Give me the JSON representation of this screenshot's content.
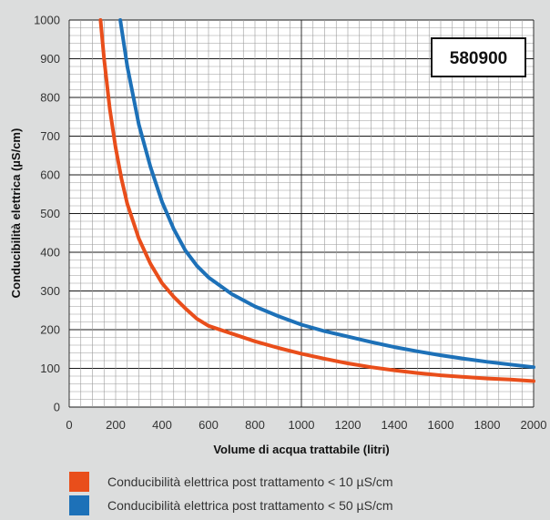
{
  "product_code": "580900",
  "chart_data": {
    "type": "line",
    "xlabel": "Volume di acqua trattabile (litri)",
    "ylabel": "Conducibilità elettrica (µS/cm)",
    "xlim": [
      0,
      2000
    ],
    "ylim": [
      0,
      1000
    ],
    "xticks": [
      "0",
      "200",
      "400",
      "600",
      "800",
      "1000",
      "1200",
      "1400",
      "1600",
      "1800",
      "2000"
    ],
    "yticks": [
      "0",
      "100",
      "200",
      "300",
      "400",
      "500",
      "600",
      "700",
      "800",
      "900",
      "1000"
    ],
    "grid": true,
    "legend_position": "bottom",
    "series": [
      {
        "name": "Conducibilità elettrica post trattamento < 10 µS/cm",
        "color": "#e94e1b",
        "x": [
          135,
          150,
          175,
          200,
          225,
          250,
          300,
          350,
          400,
          450,
          500,
          550,
          600,
          700,
          800,
          900,
          1000,
          1100,
          1200,
          1300,
          1400,
          1500,
          1600,
          1700,
          1800,
          1900,
          2000
        ],
        "y": [
          1000,
          900,
          770,
          670,
          590,
          525,
          435,
          370,
          320,
          285,
          255,
          228,
          210,
          190,
          170,
          153,
          138,
          125,
          113,
          103,
          95,
          88,
          82,
          78,
          74,
          71,
          67
        ]
      },
      {
        "name": "Conducibilità elettrica post trattamento < 50 µS/cm",
        "color": "#1d71b8",
        "x": [
          220,
          250,
          300,
          350,
          400,
          450,
          500,
          550,
          600,
          700,
          800,
          900,
          1000,
          1100,
          1200,
          1300,
          1400,
          1500,
          1600,
          1700,
          1800,
          1900,
          2000
        ],
        "y": [
          1000,
          880,
          730,
          620,
          530,
          460,
          405,
          365,
          335,
          292,
          260,
          235,
          213,
          196,
          182,
          168,
          155,
          144,
          134,
          125,
          117,
          110,
          103
        ]
      }
    ]
  }
}
